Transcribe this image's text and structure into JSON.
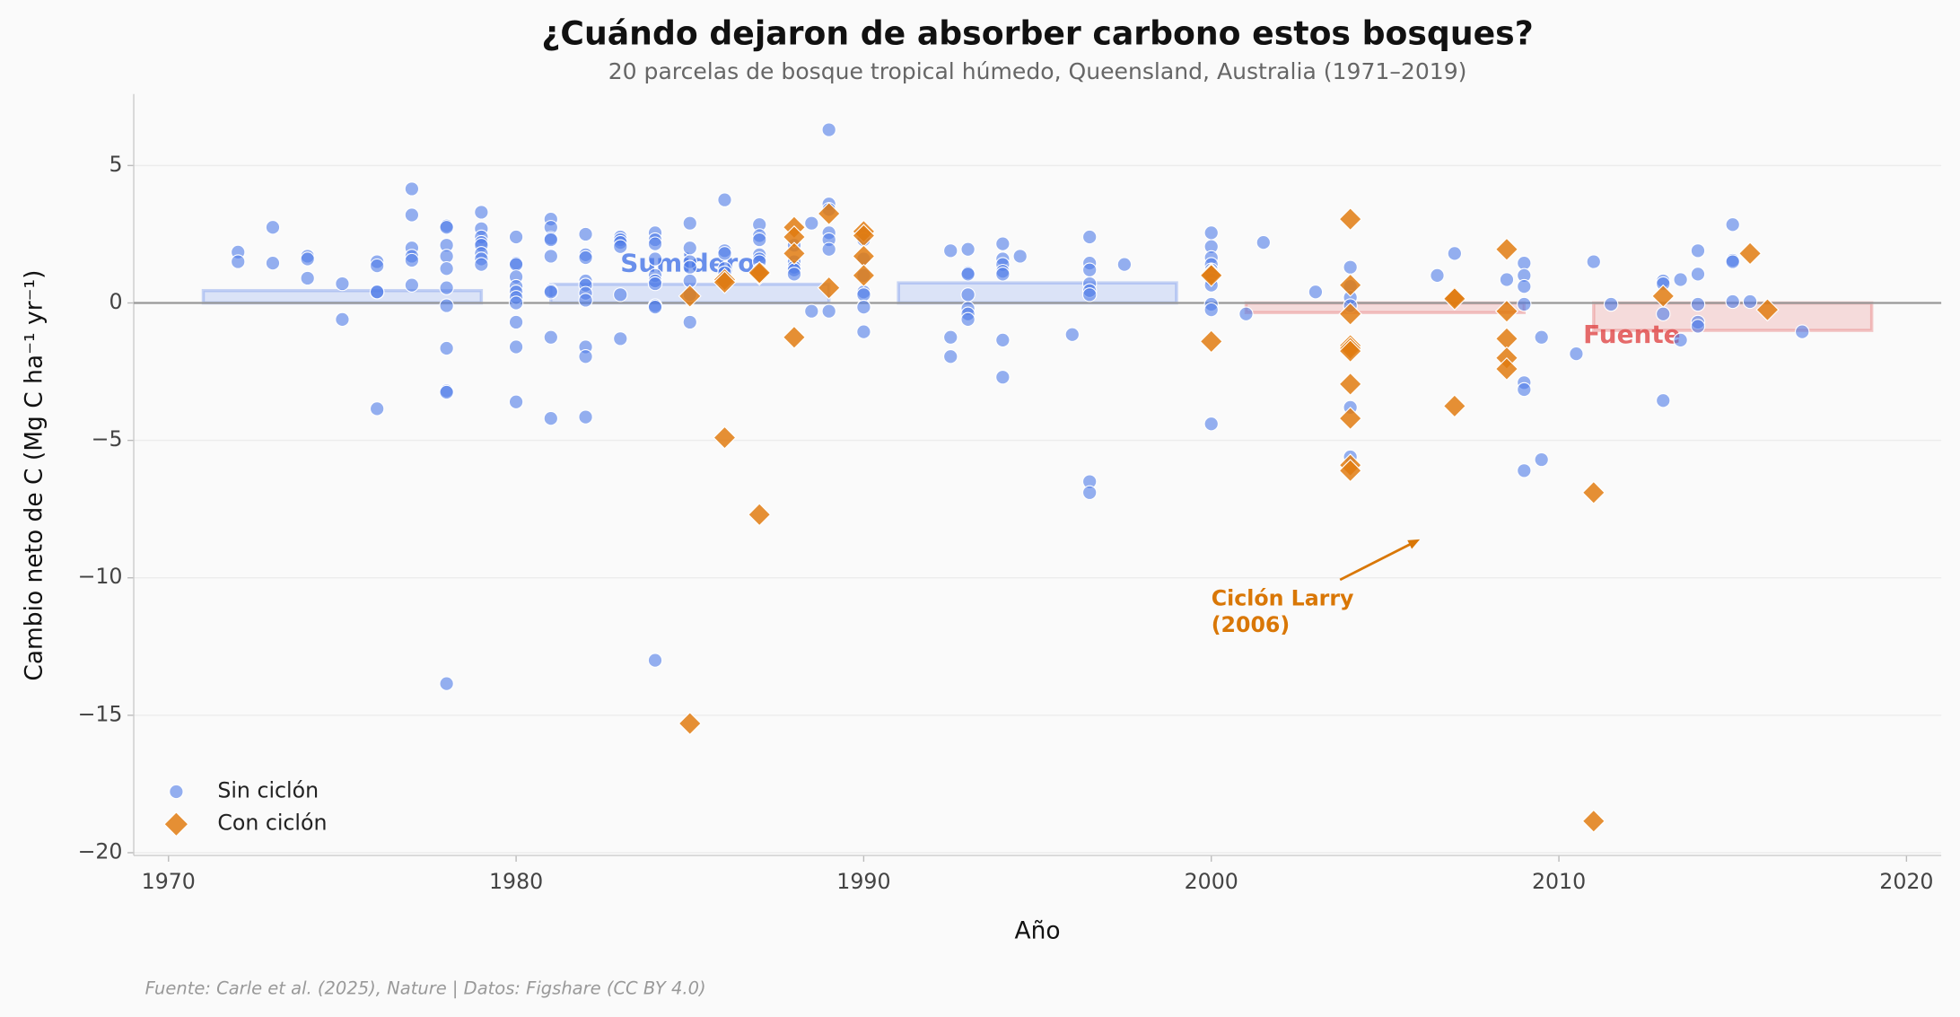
{
  "chart_data": {
    "type": "scatter",
    "title": "¿Cuándo dejaron de absorber carbono estos bosques?",
    "subtitle": "20 parcelas de bosque tropical húmedo, Queensland, Australia (1971–2019)",
    "xlabel": "Año",
    "ylabel": "Cambio neto de C (Mg C ha⁻¹ yr⁻¹)",
    "source": "Fuente: Carle et al. (2025), Nature | Datos: Figshare (CC BY 4.0)",
    "xlim": [
      1969,
      2021
    ],
    "ylim": [
      -20.1,
      7.6
    ],
    "xticks": [
      1970,
      1980,
      1990,
      2000,
      2010,
      2020
    ],
    "yticks": [
      {
        "value": -20,
        "label": "−20"
      },
      {
        "value": -15,
        "label": "−15"
      },
      {
        "value": -10,
        "label": "−10"
      },
      {
        "value": -5,
        "label": "−5"
      },
      0,
      5
    ],
    "grid": true,
    "legend": "lower left",
    "series": [
      {
        "name": "Sin ciclón",
        "color": "#4f7be8",
        "marker": "o",
        "x": [
          1972,
          1972,
          1973,
          1973,
          1974,
          1974,
          1974,
          1975,
          1975,
          1976,
          1976,
          1976,
          1976,
          1976,
          1977,
          1977,
          1977,
          1977,
          1977,
          1977,
          1978,
          1978,
          1978,
          1978,
          1978,
          1978,
          1978,
          1978,
          1978,
          1978,
          1978,
          1979,
          1979,
          1979,
          1979,
          1979,
          1979,
          1979,
          1979,
          1980,
          1980,
          1980,
          1980,
          1980,
          1980,
          1980,
          1980,
          1980,
          1980,
          1980,
          1981,
          1981,
          1981,
          1981,
          1981,
          1981,
          1981,
          1981,
          1981,
          1982,
          1982,
          1982,
          1982,
          1982,
          1982,
          1982,
          1982,
          1982,
          1982,
          1983,
          1983,
          1983,
          1983,
          1983,
          1983,
          1984,
          1984,
          1984,
          1984,
          1984,
          1984,
          1984,
          1984,
          1984,
          1984,
          1985,
          1985,
          1985,
          1985,
          1985,
          1985,
          1985,
          1986,
          1986,
          1986,
          1986,
          1986,
          1986,
          1986,
          1987,
          1987,
          1987,
          1987,
          1987,
          1987,
          1987,
          1988,
          1988,
          1988,
          1988,
          1988,
          1988.5,
          1988.5,
          1989,
          1989,
          1989,
          1989,
          1989,
          1989,
          1989,
          1990,
          1990,
          1990,
          1990,
          1990,
          1990,
          1990,
          1990,
          1992.5,
          1992.5,
          1992.5,
          1993,
          1993,
          1993,
          1993,
          1993,
          1993,
          1993,
          1994,
          1994,
          1994,
          1994,
          1994,
          1994,
          1994,
          1994.5,
          1996,
          1996.5,
          1996.5,
          1996.5,
          1996.5,
          1996.5,
          1996.5,
          1996.5,
          1996.5,
          1997.5,
          2000,
          2000,
          2000,
          2000,
          2000,
          2000,
          2000,
          2000,
          2000,
          2000,
          2001,
          2001.5,
          2003,
          2004,
          2004,
          2004,
          2004,
          2004,
          2004,
          2006.5,
          2007,
          2008.5,
          2009,
          2009,
          2009,
          2009,
          2009,
          2009,
          2009,
          2009.5,
          2009.5,
          2010.5,
          2011,
          2011.5,
          2013,
          2013,
          2013,
          2013,
          2013.5,
          2013.5,
          2014,
          2014,
          2014,
          2014,
          2014,
          2015,
          2015,
          2015,
          2015,
          2015.5,
          2017
        ],
        "values": [
          1.85,
          1.5,
          2.75,
          1.45,
          1.7,
          1.6,
          0.9,
          0.7,
          -0.6,
          1.5,
          1.35,
          0.4,
          0.4,
          -3.85,
          4.15,
          3.2,
          2.0,
          1.7,
          1.55,
          0.65,
          2.8,
          2.75,
          2.1,
          1.7,
          1.25,
          0.55,
          -0.1,
          -1.65,
          -3.2,
          -3.25,
          -13.85,
          3.3,
          2.7,
          2.4,
          2.2,
          2.1,
          1.8,
          1.6,
          1.4,
          2.4,
          1.45,
          1.4,
          0.95,
          0.6,
          0.4,
          0.2,
          0,
          -0.7,
          -1.6,
          -3.6,
          3.05,
          2.75,
          2.35,
          2.3,
          1.7,
          0.45,
          0.4,
          -1.25,
          -4.2,
          2.5,
          1.75,
          1.65,
          0.8,
          0.65,
          0.35,
          0.1,
          -1.6,
          -1.95,
          -4.15,
          2.4,
          2.3,
          2.2,
          2.05,
          0.3,
          -1.3,
          2.55,
          2.3,
          2.15,
          1.6,
          1.0,
          0.8,
          0.7,
          -0.1,
          -0.15,
          -13.0,
          2.9,
          2.0,
          1.5,
          1.3,
          0.8,
          0.3,
          -0.7,
          3.75,
          1.9,
          1.8,
          1.25,
          1.1,
          0.9,
          0.7,
          2.85,
          2.45,
          2.3,
          1.75,
          1.6,
          1.5,
          1.2,
          2.1,
          1.5,
          1.3,
          1.2,
          1.05,
          2.9,
          -0.3,
          6.3,
          3.6,
          3.4,
          2.55,
          2.3,
          1.95,
          -0.3,
          2.45,
          2.3,
          1.6,
          1.0,
          0.4,
          0.3,
          -0.15,
          -1.05,
          1.9,
          -1.25,
          -1.95,
          1.95,
          1.1,
          1.05,
          0.3,
          -0.2,
          -0.4,
          -0.6,
          2.15,
          1.6,
          1.4,
          1.15,
          1.05,
          -1.35,
          -2.7,
          1.7,
          -1.15,
          2.4,
          1.45,
          1.2,
          0.7,
          0.45,
          0.3,
          -6.5,
          -6.9,
          1.4,
          2.55,
          2.05,
          1.65,
          1.4,
          1.2,
          0.85,
          0.65,
          -0.05,
          -0.25,
          -4.4,
          -0.4,
          2.2,
          0.4,
          1.3,
          0.6,
          0.2,
          -0.1,
          -3.8,
          -5.6,
          1.0,
          1.8,
          0.85,
          1.45,
          1.0,
          0.6,
          -0.05,
          -2.9,
          -3.15,
          -6.1,
          -1.25,
          -5.7,
          -1.85,
          1.5,
          -0.05,
          0.8,
          0.7,
          -0.4,
          -3.55,
          0.85,
          -1.35,
          1.9,
          1.05,
          -0.05,
          -0.7,
          -0.85,
          2.85,
          1.55,
          1.5,
          0.05,
          0.05,
          -1.05
        ]
      },
      {
        "name": "Con ciclón",
        "color": "#e07b10",
        "marker": "D",
        "x": [
          1985,
          1985,
          1986,
          1986,
          1986,
          1987,
          1987,
          1987,
          1988,
          1988,
          1988,
          1988,
          1989,
          1989,
          1990,
          1990,
          1990,
          1990,
          2000,
          2000,
          2000,
          2004,
          2004,
          2004,
          2004,
          2004,
          2004,
          2004,
          2004,
          2004,
          2004,
          2007,
          2007,
          2007,
          2008.5,
          2008.5,
          2008.5,
          2008.5,
          2008.5,
          2011,
          2011,
          2013,
          2015.5,
          2016
        ],
        "values": [
          0.25,
          -15.3,
          0.85,
          0.75,
          -4.9,
          1.05,
          1.1,
          -7.7,
          2.75,
          2.4,
          1.8,
          -1.25,
          3.25,
          0.55,
          2.6,
          2.45,
          1.7,
          1.0,
          1.05,
          1.0,
          -1.4,
          3.05,
          0.65,
          -0.4,
          -1.55,
          -1.65,
          -1.75,
          -2.95,
          -4.2,
          -5.9,
          -6.1,
          0.2,
          0.15,
          -3.75,
          1.95,
          -0.3,
          -1.3,
          -2.0,
          -2.4,
          -6.9,
          -18.85,
          0.25,
          1.8,
          -0.25
        ]
      }
    ],
    "decades": [
      {
        "x": [
          1971,
          1979
        ],
        "value": 0.45,
        "color": "#4f7be8"
      },
      {
        "x": [
          1981,
          1989
        ],
        "value": 0.68,
        "color": "#4f7be8"
      },
      {
        "x": [
          1991,
          1999
        ],
        "value": 0.73,
        "color": "#4f7be8"
      },
      {
        "x": [
          2001,
          2009
        ],
        "value": -0.35,
        "color": "#e05050"
      },
      {
        "x": [
          2011,
          2019
        ],
        "value": -1.0,
        "color": "#e05050"
      }
    ],
    "region_labels": [
      {
        "text": "Sumidero",
        "x": 1983,
        "y": 1.4,
        "color": "#4f7be8"
      },
      {
        "text": "Fuente",
        "x": 2010.7,
        "y": -1.2,
        "color": "#e05050"
      }
    ],
    "annotation": {
      "text": [
        "Ciclón Larry",
        "(2006)"
      ],
      "xy": [
        2006,
        -8.6
      ],
      "xytext": [
        2000,
        -10.8
      ],
      "color": "#d97706"
    }
  }
}
